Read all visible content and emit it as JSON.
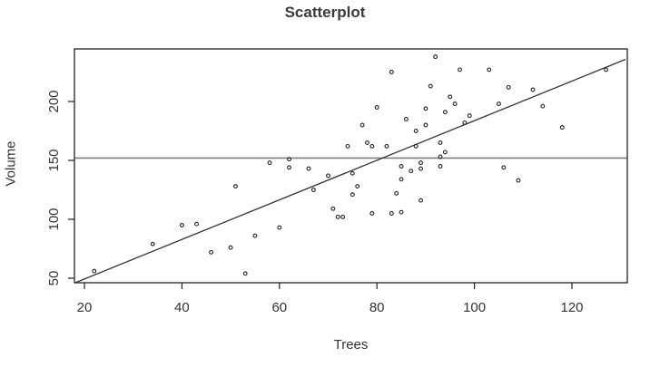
{
  "chart_data": {
    "type": "scatter",
    "title": "Scatterplot",
    "xlabel": "Trees",
    "ylabel": "Volume",
    "xlim": [
      18,
      131
    ],
    "ylim": [
      46,
      244
    ],
    "x_ticks": [
      20,
      40,
      60,
      80,
      100,
      120
    ],
    "y_ticks": [
      50,
      100,
      150,
      200
    ],
    "grid": false,
    "legend": null,
    "points": [
      [
        22,
        56
      ],
      [
        34,
        79
      ],
      [
        40,
        95
      ],
      [
        43,
        96
      ],
      [
        46,
        72
      ],
      [
        50,
        76
      ],
      [
        51,
        128
      ],
      [
        53,
        54
      ],
      [
        55,
        86
      ],
      [
        58,
        148
      ],
      [
        60,
        93
      ],
      [
        62,
        151
      ],
      [
        62,
        144
      ],
      [
        66,
        143
      ],
      [
        67,
        125
      ],
      [
        70,
        137
      ],
      [
        71,
        109
      ],
      [
        72,
        102
      ],
      [
        73,
        102
      ],
      [
        74,
        162
      ],
      [
        75,
        139
      ],
      [
        75,
        121
      ],
      [
        76,
        128
      ],
      [
        77,
        180
      ],
      [
        78,
        165
      ],
      [
        79,
        162
      ],
      [
        79,
        105
      ],
      [
        80,
        195
      ],
      [
        82,
        162
      ],
      [
        83,
        225
      ],
      [
        83,
        105
      ],
      [
        84,
        122
      ],
      [
        85,
        145
      ],
      [
        85,
        134
      ],
      [
        85,
        106
      ],
      [
        86,
        185
      ],
      [
        87,
        141
      ],
      [
        88,
        175
      ],
      [
        88,
        162
      ],
      [
        89,
        148
      ],
      [
        89,
        143
      ],
      [
        89,
        116
      ],
      [
        90,
        194
      ],
      [
        90,
        180
      ],
      [
        91,
        213
      ],
      [
        92,
        238
      ],
      [
        93,
        165
      ],
      [
        93,
        153
      ],
      [
        93,
        145
      ],
      [
        94,
        157
      ],
      [
        94,
        191
      ],
      [
        95,
        204
      ],
      [
        96,
        198
      ],
      [
        97,
        227
      ],
      [
        98,
        182
      ],
      [
        99,
        188
      ],
      [
        103,
        227
      ],
      [
        105,
        198
      ],
      [
        106,
        144
      ],
      [
        107,
        212
      ],
      [
        109,
        133
      ],
      [
        112,
        210
      ],
      [
        114,
        196
      ],
      [
        118,
        178
      ],
      [
        127,
        227
      ]
    ],
    "regression_line": {
      "intercept": 15.7,
      "slope": 1.68,
      "color": "#333333"
    },
    "mean_line": {
      "y": 152,
      "color": "#808080"
    },
    "point_color": "#222222",
    "axis_color": "#222222"
  }
}
